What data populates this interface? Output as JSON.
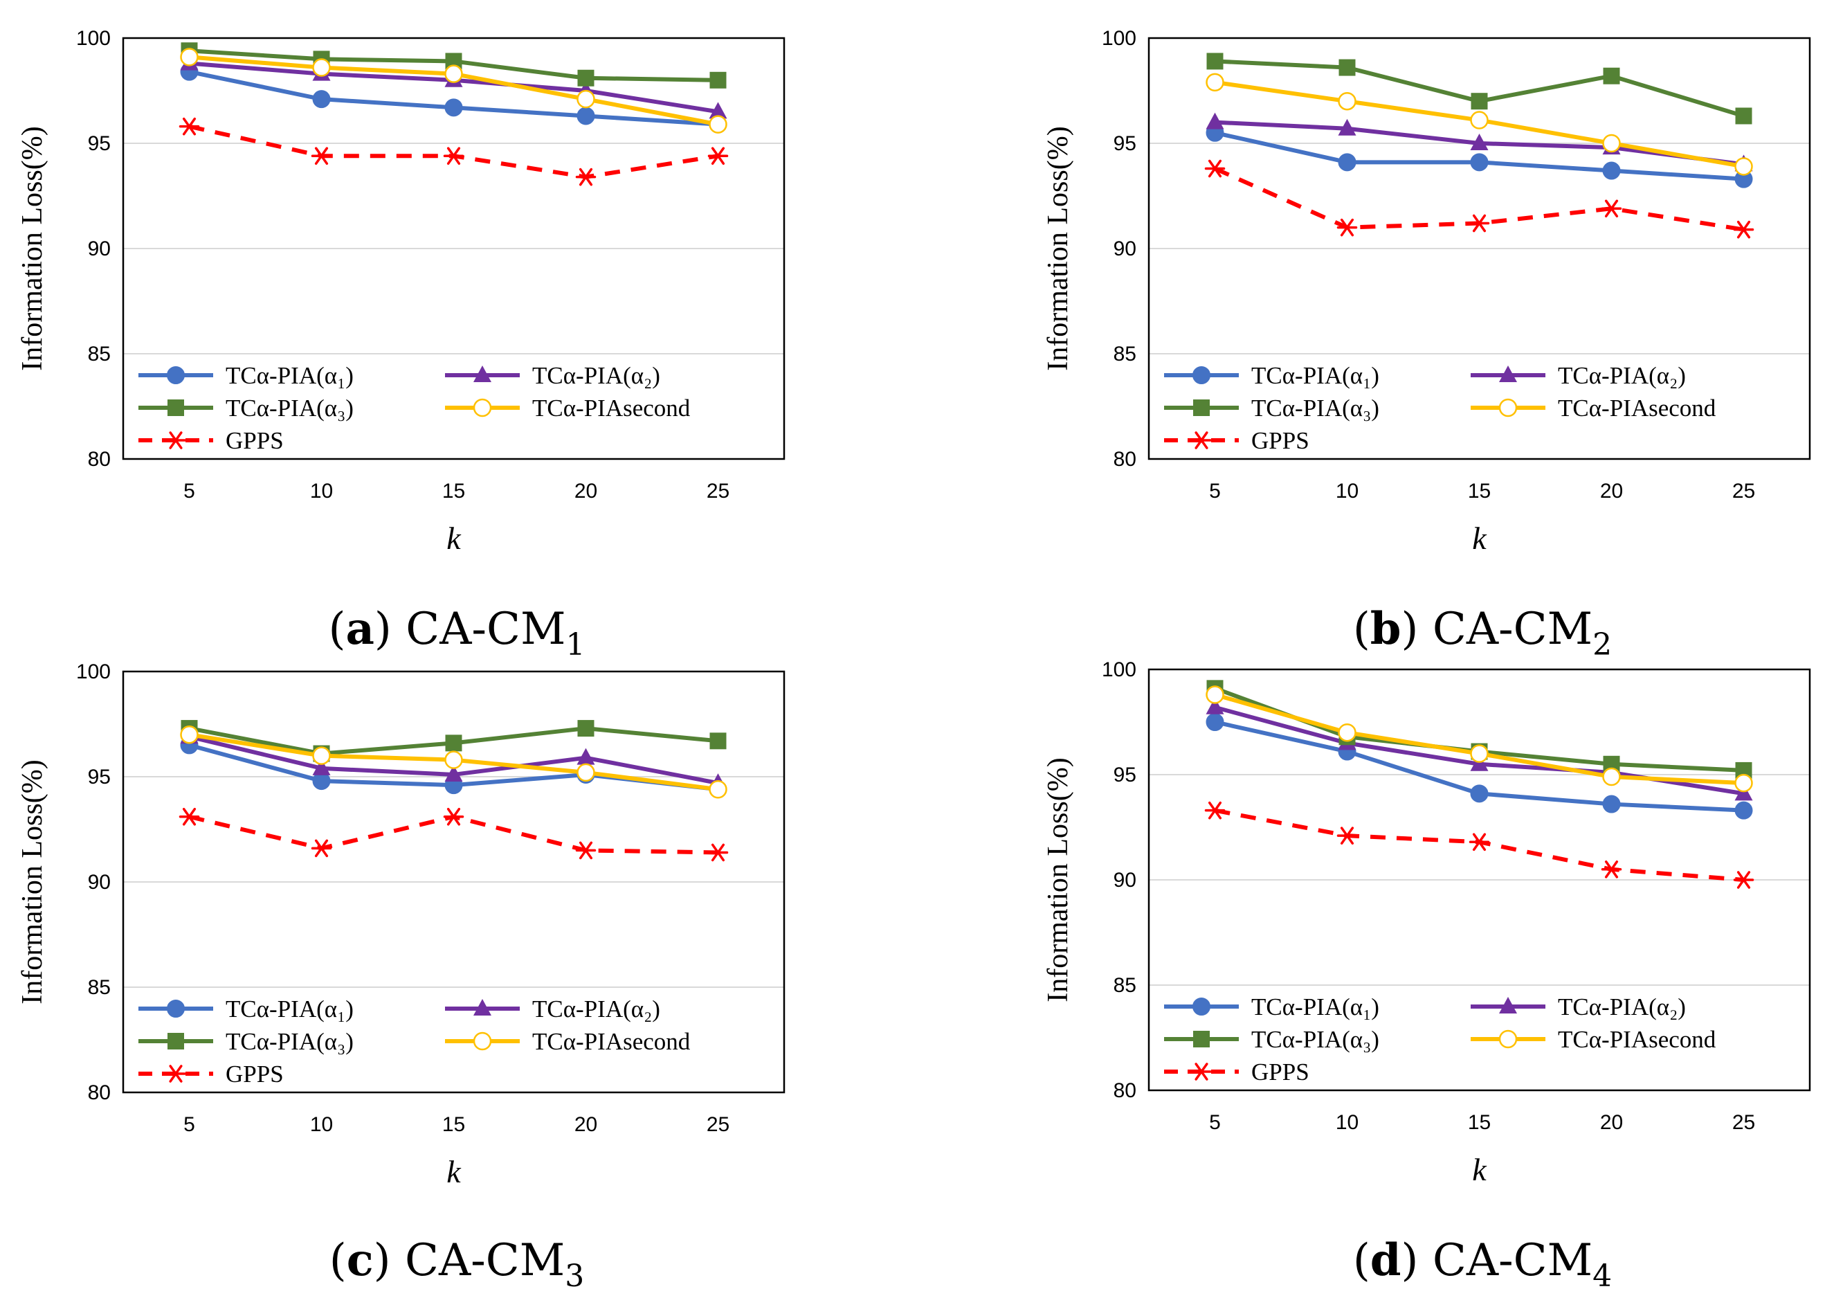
{
  "chart_data": [
    {
      "type": "line",
      "panel_tag": "a",
      "caption": "CA-CM",
      "caption_sub": "1",
      "xlabel": "k",
      "ylabel": "Information Loss(%)",
      "ylim": [
        80,
        100
      ],
      "yticks": [
        "80",
        "85",
        "90",
        "95",
        "100"
      ],
      "categories": [
        "5",
        "10",
        "15",
        "20",
        "25"
      ],
      "grid": true,
      "legend_position": "bottom-left inside",
      "series": [
        {
          "name": "TCα-PIA(α₁)",
          "marker": "circle",
          "color": "#4472C4",
          "dash": "solid",
          "values": [
            98.4,
            97.1,
            96.7,
            96.3,
            95.9
          ]
        },
        {
          "name": "TCα-PIA(α₂)",
          "marker": "triangle",
          "color": "#7030A0",
          "dash": "solid",
          "values": [
            98.8,
            98.3,
            98.0,
            97.5,
            96.5
          ]
        },
        {
          "name": "TCα-PIA(α₃)",
          "marker": "square",
          "color": "#548235",
          "dash": "solid",
          "values": [
            99.4,
            99.0,
            98.9,
            98.1,
            98.0
          ]
        },
        {
          "name": "TCα-PIAsecond",
          "marker": "open-circle",
          "color": "#FFC000",
          "dash": "solid",
          "values": [
            99.1,
            98.6,
            98.3,
            97.1,
            95.9
          ]
        },
        {
          "name": "GPPS",
          "marker": "asterisk",
          "color": "#FF0000",
          "dash": "dashed",
          "values": [
            95.8,
            94.4,
            94.4,
            93.4,
            94.4
          ]
        }
      ]
    },
    {
      "type": "line",
      "panel_tag": "b",
      "caption": "CA-CM",
      "caption_sub": "2",
      "xlabel": "k",
      "ylabel": "Information Loss(%)",
      "ylim": [
        80,
        100
      ],
      "yticks": [
        "80",
        "85",
        "90",
        "95",
        "100"
      ],
      "categories": [
        "5",
        "10",
        "15",
        "20",
        "25"
      ],
      "grid": true,
      "legend_position": "bottom-left inside",
      "series": [
        {
          "name": "TCα-PIA(α₁)",
          "marker": "circle",
          "color": "#4472C4",
          "dash": "solid",
          "values": [
            95.5,
            94.1,
            94.1,
            93.7,
            93.3
          ]
        },
        {
          "name": "TCα-PIA(α₂)",
          "marker": "triangle",
          "color": "#7030A0",
          "dash": "solid",
          "values": [
            96.0,
            95.7,
            95.0,
            94.8,
            94.0
          ]
        },
        {
          "name": "TCα-PIA(α₃)",
          "marker": "square",
          "color": "#548235",
          "dash": "solid",
          "values": [
            98.9,
            98.6,
            97.0,
            98.2,
            96.3
          ]
        },
        {
          "name": "TCα-PIAsecond",
          "marker": "open-circle",
          "color": "#FFC000",
          "dash": "solid",
          "values": [
            97.9,
            97.0,
            96.1,
            95.0,
            93.9
          ]
        },
        {
          "name": "GPPS",
          "marker": "asterisk",
          "color": "#FF0000",
          "dash": "dashed",
          "values": [
            93.8,
            91.0,
            91.2,
            91.9,
            90.9
          ]
        }
      ]
    },
    {
      "type": "line",
      "panel_tag": "c",
      "caption": "CA-CM",
      "caption_sub": "3",
      "xlabel": "k",
      "ylabel": "Information Loss(%)",
      "ylim": [
        80,
        100
      ],
      "yticks": [
        "80",
        "85",
        "90",
        "95",
        "100"
      ],
      "categories": [
        "5",
        "10",
        "15",
        "20",
        "25"
      ],
      "grid": true,
      "legend_position": "bottom-left inside",
      "series": [
        {
          "name": "TCα-PIA(α₁)",
          "marker": "circle",
          "color": "#4472C4",
          "dash": "solid",
          "values": [
            96.5,
            94.8,
            94.6,
            95.1,
            94.4
          ]
        },
        {
          "name": "TCα-PIA(α₂)",
          "marker": "triangle",
          "color": "#7030A0",
          "dash": "solid",
          "values": [
            96.9,
            95.4,
            95.1,
            95.9,
            94.7
          ]
        },
        {
          "name": "TCα-PIA(α₃)",
          "marker": "square",
          "color": "#548235",
          "dash": "solid",
          "values": [
            97.3,
            96.1,
            96.6,
            97.3,
            96.7
          ]
        },
        {
          "name": "TCα-PIAsecond",
          "marker": "open-circle",
          "color": "#FFC000",
          "dash": "solid",
          "values": [
            97.0,
            96.0,
            95.8,
            95.2,
            94.4
          ]
        },
        {
          "name": "GPPS",
          "marker": "asterisk",
          "color": "#FF0000",
          "dash": "dashed",
          "values": [
            93.1,
            91.6,
            93.1,
            91.5,
            91.4
          ]
        }
      ]
    },
    {
      "type": "line",
      "panel_tag": "d",
      "caption": "CA-CM",
      "caption_sub": "4",
      "xlabel": "k",
      "ylabel": "Information Loss(%)",
      "ylim": [
        80,
        100
      ],
      "yticks": [
        "80",
        "85",
        "90",
        "95",
        "100"
      ],
      "categories": [
        "5",
        "10",
        "15",
        "20",
        "25"
      ],
      "grid": true,
      "legend_position": "bottom-left inside",
      "series": [
        {
          "name": "TCα-PIA(α₁)",
          "marker": "circle",
          "color": "#4472C4",
          "dash": "solid",
          "values": [
            97.5,
            96.1,
            94.1,
            93.6,
            93.3
          ]
        },
        {
          "name": "TCα-PIA(α₂)",
          "marker": "triangle",
          "color": "#7030A0",
          "dash": "solid",
          "values": [
            98.2,
            96.5,
            95.5,
            95.1,
            94.1
          ]
        },
        {
          "name": "TCα-PIA(α₃)",
          "marker": "square",
          "color": "#548235",
          "dash": "solid",
          "values": [
            99.1,
            96.8,
            96.1,
            95.5,
            95.2
          ]
        },
        {
          "name": "TCα-PIAsecond",
          "marker": "open-circle",
          "color": "#FFC000",
          "dash": "solid",
          "values": [
            98.8,
            97.0,
            96.0,
            94.9,
            94.6
          ]
        },
        {
          "name": "GPPS",
          "marker": "asterisk",
          "color": "#FF0000",
          "dash": "dashed",
          "values": [
            93.3,
            92.1,
            91.8,
            90.5,
            90.0
          ]
        }
      ]
    }
  ]
}
